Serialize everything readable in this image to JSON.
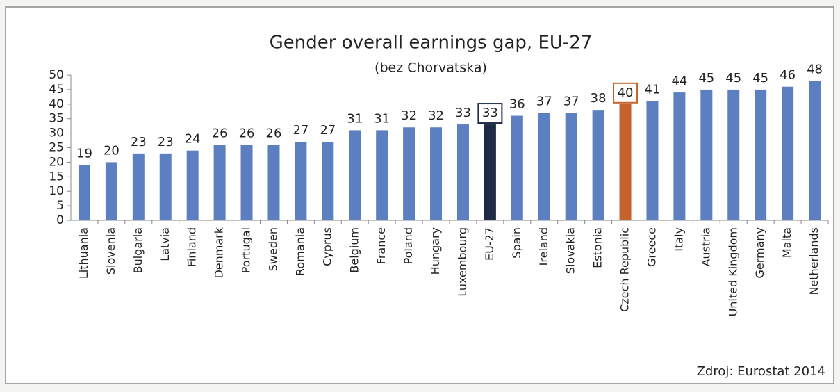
{
  "chart_data": {
    "type": "bar",
    "title": "Gender overall earnings gap, EU-27",
    "subtitle": "(bez Chorvatska)",
    "categories": [
      "Lithuania",
      "Slovenia",
      "Bulgaria",
      "Latvia",
      "Finland",
      "Denmark",
      "Portugal",
      "Sweden",
      "Romania",
      "Cyprus",
      "Belgium",
      "France",
      "Poland",
      "Hungary",
      "Luxembourg",
      "EU-27",
      "Spain",
      "Ireland",
      "Slovakia",
      "Estonia",
      "Czech Republic",
      "Greece",
      "Italy",
      "Austria",
      "United Kingdom",
      "Germany",
      "Malta",
      "Netherlands"
    ],
    "values": [
      19,
      20,
      23,
      23,
      24,
      26,
      26,
      26,
      27,
      27,
      31,
      31,
      32,
      32,
      33,
      33,
      36,
      37,
      37,
      38,
      40,
      41,
      44,
      45,
      45,
      45,
      46,
      48
    ],
    "color": "#5b7fc1",
    "colors": [
      "#5b7fc1",
      "#5b7fc1",
      "#5b7fc1",
      "#5b7fc1",
      "#5b7fc1",
      "#5b7fc1",
      "#5b7fc1",
      "#5b7fc1",
      "#5b7fc1",
      "#5b7fc1",
      "#5b7fc1",
      "#5b7fc1",
      "#5b7fc1",
      "#5b7fc1",
      "#5b7fc1",
      "#1f2a44",
      "#5b7fc1",
      "#5b7fc1",
      "#5b7fc1",
      "#5b7fc1",
      "#c4632c",
      "#5b7fc1",
      "#5b7fc1",
      "#5b7fc1",
      "#5b7fc1",
      "#5b7fc1",
      "#5b7fc1",
      "#5b7fc1"
    ],
    "ylim": [
      0,
      50
    ],
    "yticks": [
      0,
      5,
      10,
      15,
      20,
      25,
      30,
      35,
      40,
      45,
      50
    ],
    "grid": false,
    "source": "Zdroj: Eurostat 2014"
  }
}
